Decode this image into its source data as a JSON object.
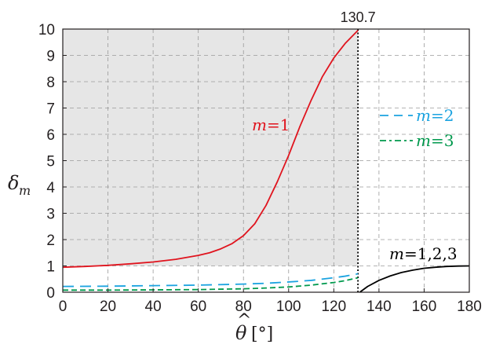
{
  "chart_data": {
    "type": "line",
    "xlabel": "θ̂ [°]",
    "ylabel": "δm",
    "xlim": [
      0,
      180
    ],
    "ylim": [
      0,
      10
    ],
    "x_ticks": [
      0,
      20,
      40,
      60,
      80,
      100,
      120,
      140,
      160,
      180
    ],
    "y_ticks": [
      0,
      1,
      2,
      3,
      4,
      5,
      6,
      7,
      8,
      9,
      10
    ],
    "grid": true,
    "critical_x": 130.7,
    "critical_label": "130.7",
    "shaded_region": {
      "y_from": 1,
      "y_to": 10,
      "color": "#e6e6e6"
    },
    "series": [
      {
        "key": "m1",
        "color": "#e0141e",
        "style": "solid",
        "x": [
          0,
          10,
          20,
          30,
          40,
          50,
          60,
          65,
          70,
          75,
          80,
          85,
          90,
          95,
          100,
          105,
          110,
          115,
          120,
          125,
          130.7
        ],
        "y": [
          0.95,
          0.98,
          1.02,
          1.08,
          1.15,
          1.25,
          1.4,
          1.5,
          1.65,
          1.85,
          2.15,
          2.6,
          3.3,
          4.2,
          5.2,
          6.3,
          7.3,
          8.2,
          8.9,
          9.45,
          9.95
        ]
      },
      {
        "key": "m2",
        "color": "#1ba3e0",
        "style": "dash",
        "x": [
          0,
          20,
          40,
          60,
          80,
          90,
          100,
          110,
          120,
          125,
          130.7
        ],
        "y": [
          0.22,
          0.23,
          0.25,
          0.27,
          0.31,
          0.34,
          0.39,
          0.45,
          0.55,
          0.61,
          0.7
        ]
      },
      {
        "key": "m3",
        "color": "#00994d",
        "style": "dash",
        "x": [
          0,
          20,
          40,
          60,
          80,
          90,
          100,
          110,
          120,
          125,
          130.7
        ],
        "y": [
          0.08,
          0.08,
          0.09,
          0.1,
          0.13,
          0.16,
          0.2,
          0.27,
          0.37,
          0.44,
          0.55
        ]
      },
      {
        "key": "m123",
        "color": "#000000",
        "style": "solid",
        "x": [
          131.5,
          135,
          140,
          145,
          150,
          155,
          160,
          165,
          170,
          175,
          180
        ],
        "y": [
          0.0,
          0.22,
          0.45,
          0.62,
          0.75,
          0.84,
          0.91,
          0.95,
          0.98,
          0.995,
          1.0
        ]
      }
    ],
    "annotations": {
      "m1": {
        "m": "m",
        "eq": "=1"
      },
      "m2": {
        "m": "m",
        "eq": "=2"
      },
      "m3": {
        "m": "m",
        "eq": "=3"
      },
      "m123": {
        "m": "m",
        "eq": "=1,2,3"
      }
    },
    "axis_label_parts": {
      "x_theta": "θ",
      "x_hat": "^",
      "x_unit": "[°]",
      "y_delta": "δ",
      "y_sub": "m"
    }
  }
}
